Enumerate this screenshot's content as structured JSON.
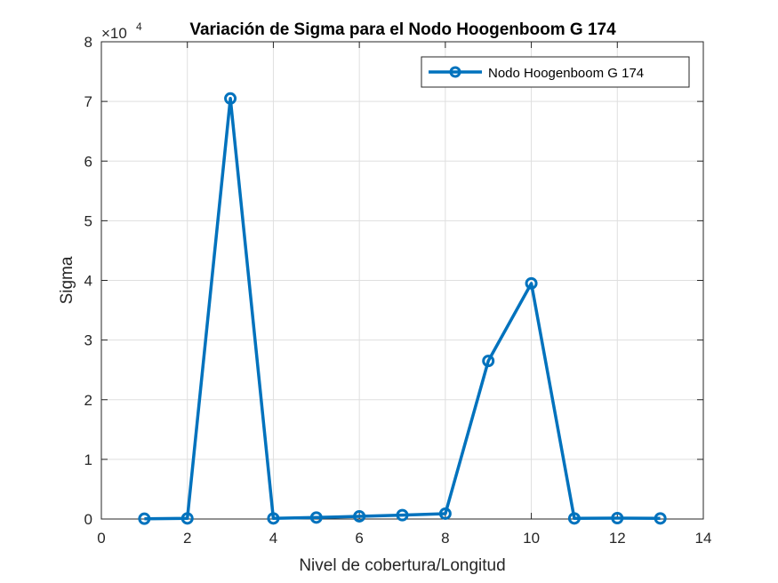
{
  "chart_data": {
    "type": "line",
    "title": "Variación de Sigma para el Nodo Hoogenboom G 174",
    "xlabel": "Nivel de cobertura/Longitud",
    "ylabel": "Sigma",
    "y_exponent_base": "×10",
    "y_exponent_power": "4",
    "xlim": [
      0,
      14
    ],
    "ylim": [
      0,
      80000
    ],
    "x_ticks": [
      0,
      2,
      4,
      6,
      8,
      10,
      12,
      14
    ],
    "y_ticks": [
      0,
      10000,
      20000,
      30000,
      40000,
      50000,
      60000,
      70000,
      80000
    ],
    "x_tick_labels": [
      "0",
      "2",
      "4",
      "6",
      "8",
      "10",
      "12",
      "14"
    ],
    "y_tick_labels": [
      "0",
      "1",
      "2",
      "3",
      "4",
      "5",
      "6",
      "7",
      "8"
    ],
    "grid": true,
    "legend_position": "top-right",
    "series": [
      {
        "name": "Nodo Hoogenboom G 174",
        "color": "#0072BD",
        "marker": "circle",
        "x": [
          1,
          2,
          3,
          4,
          5,
          6,
          7,
          8,
          9,
          10,
          11,
          12,
          13
        ],
        "y": [
          50,
          100,
          70500,
          100,
          250,
          450,
          650,
          900,
          26500,
          39500,
          100,
          150,
          100
        ]
      }
    ]
  }
}
